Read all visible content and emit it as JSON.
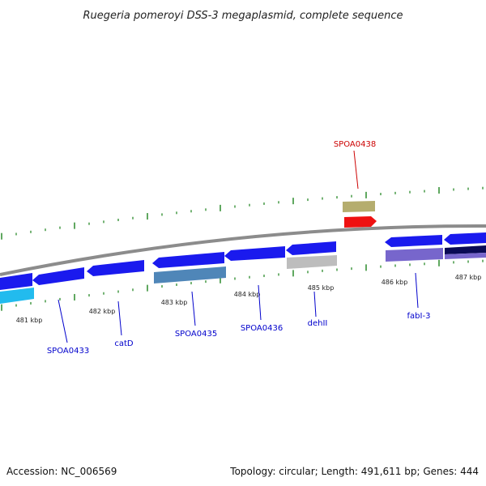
{
  "title": "Ruegeria pomeroyi DSS-3 megaplasmid, complete sequence",
  "footer": {
    "accession": "Accession: NC_006569",
    "summary": "Topology: circular; Length: 491,611 bp; Genes: 444"
  },
  "kbp_labels": [
    {
      "kbp": 481,
      "text": "481 kbp"
    },
    {
      "kbp": 482,
      "text": "482 kbp"
    },
    {
      "kbp": 483,
      "text": "483 kbp"
    },
    {
      "kbp": 484,
      "text": "484 kbp"
    },
    {
      "kbp": 485,
      "text": "485 kbp"
    },
    {
      "kbp": 486,
      "text": "486 kbp"
    },
    {
      "kbp": 487,
      "text": "487 kbp"
    }
  ],
  "gene_labels": [
    {
      "text": "SPOA0433",
      "color": "#0000cc"
    },
    {
      "text": "catD",
      "color": "#0000cc"
    },
    {
      "text": "SPOA0435",
      "color": "#0000cc"
    },
    {
      "text": "SPOA0436",
      "color": "#0000cc"
    },
    {
      "text": "dehII",
      "color": "#0000cc"
    },
    {
      "text": "fabI-3",
      "color": "#0000cc"
    },
    {
      "text": "SPOA0438",
      "color": "#cc0000"
    }
  ],
  "colors": {
    "backbone": "#8c8c8c",
    "cds_blue": "#1a1aee",
    "cyan": "#22bbee",
    "steel": "#4f86b8",
    "gray": "#bdbdbd",
    "purple": "#7766cc",
    "navy": "#0a0a55",
    "olive": "#b5ad6e",
    "red": "#ee1111",
    "tick": "#2a8a2a"
  }
}
